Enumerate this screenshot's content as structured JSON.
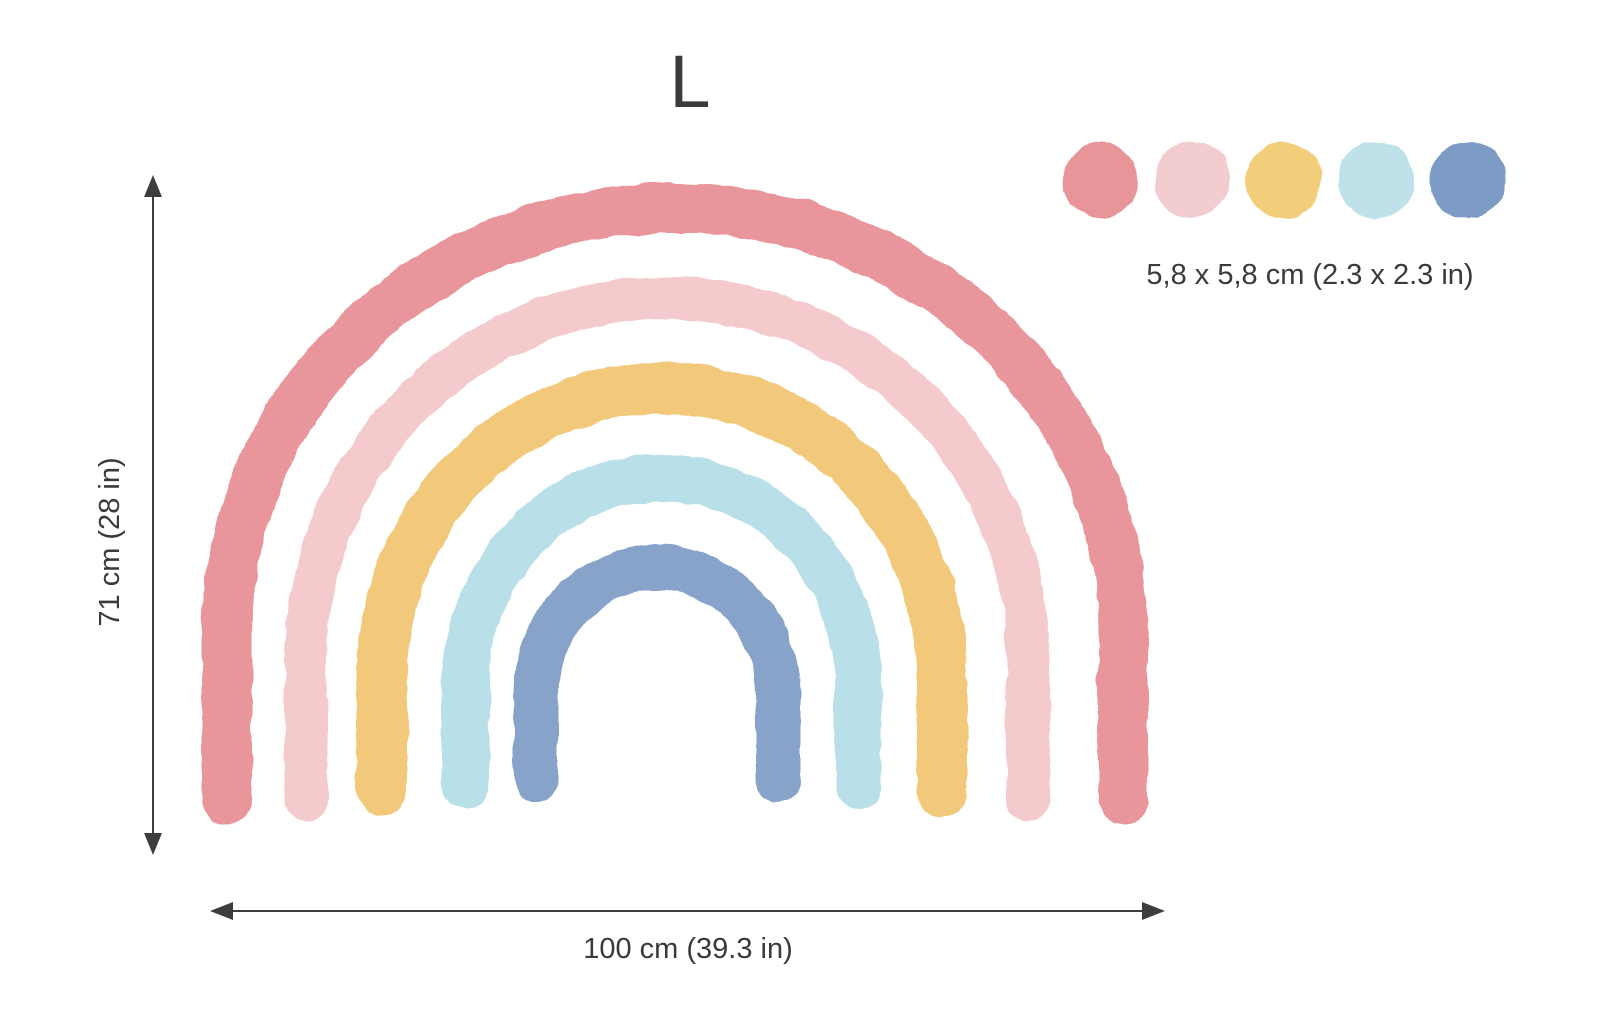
{
  "size_label": "L",
  "dimensions": {
    "width": "100 cm (39.3 in)",
    "height": "71 cm (28 in)",
    "dots": "5,8 x 5,8 cm (2.3 x 2.3 in)"
  },
  "colors": {
    "text": "#3a3a3a",
    "arrow": "#3d3d3d",
    "bands": [
      "#e68c92",
      "#f3c6c9",
      "#f1c46f",
      "#b3dce6",
      "#7d9bc4"
    ],
    "dots": [
      "#e8959a",
      "#f3cccf",
      "#f2cd7a",
      "#bfe2ea",
      "#7c9bc5"
    ]
  },
  "rainbow": {
    "bands": [
      {
        "name": "red",
        "color": "#e68c92"
      },
      {
        "name": "pink",
        "color": "#f3c6c9"
      },
      {
        "name": "yellow",
        "color": "#f1c46f"
      },
      {
        "name": "light-blue",
        "color": "#b3dce6"
      },
      {
        "name": "blue",
        "color": "#7d9bc4"
      }
    ]
  },
  "dots": [
    {
      "name": "red",
      "color": "#e8959a"
    },
    {
      "name": "pink",
      "color": "#f3cccf"
    },
    {
      "name": "yellow",
      "color": "#f2cd7a"
    },
    {
      "name": "light-blue",
      "color": "#bfe2ea"
    },
    {
      "name": "blue",
      "color": "#7c9bc5"
    }
  ]
}
